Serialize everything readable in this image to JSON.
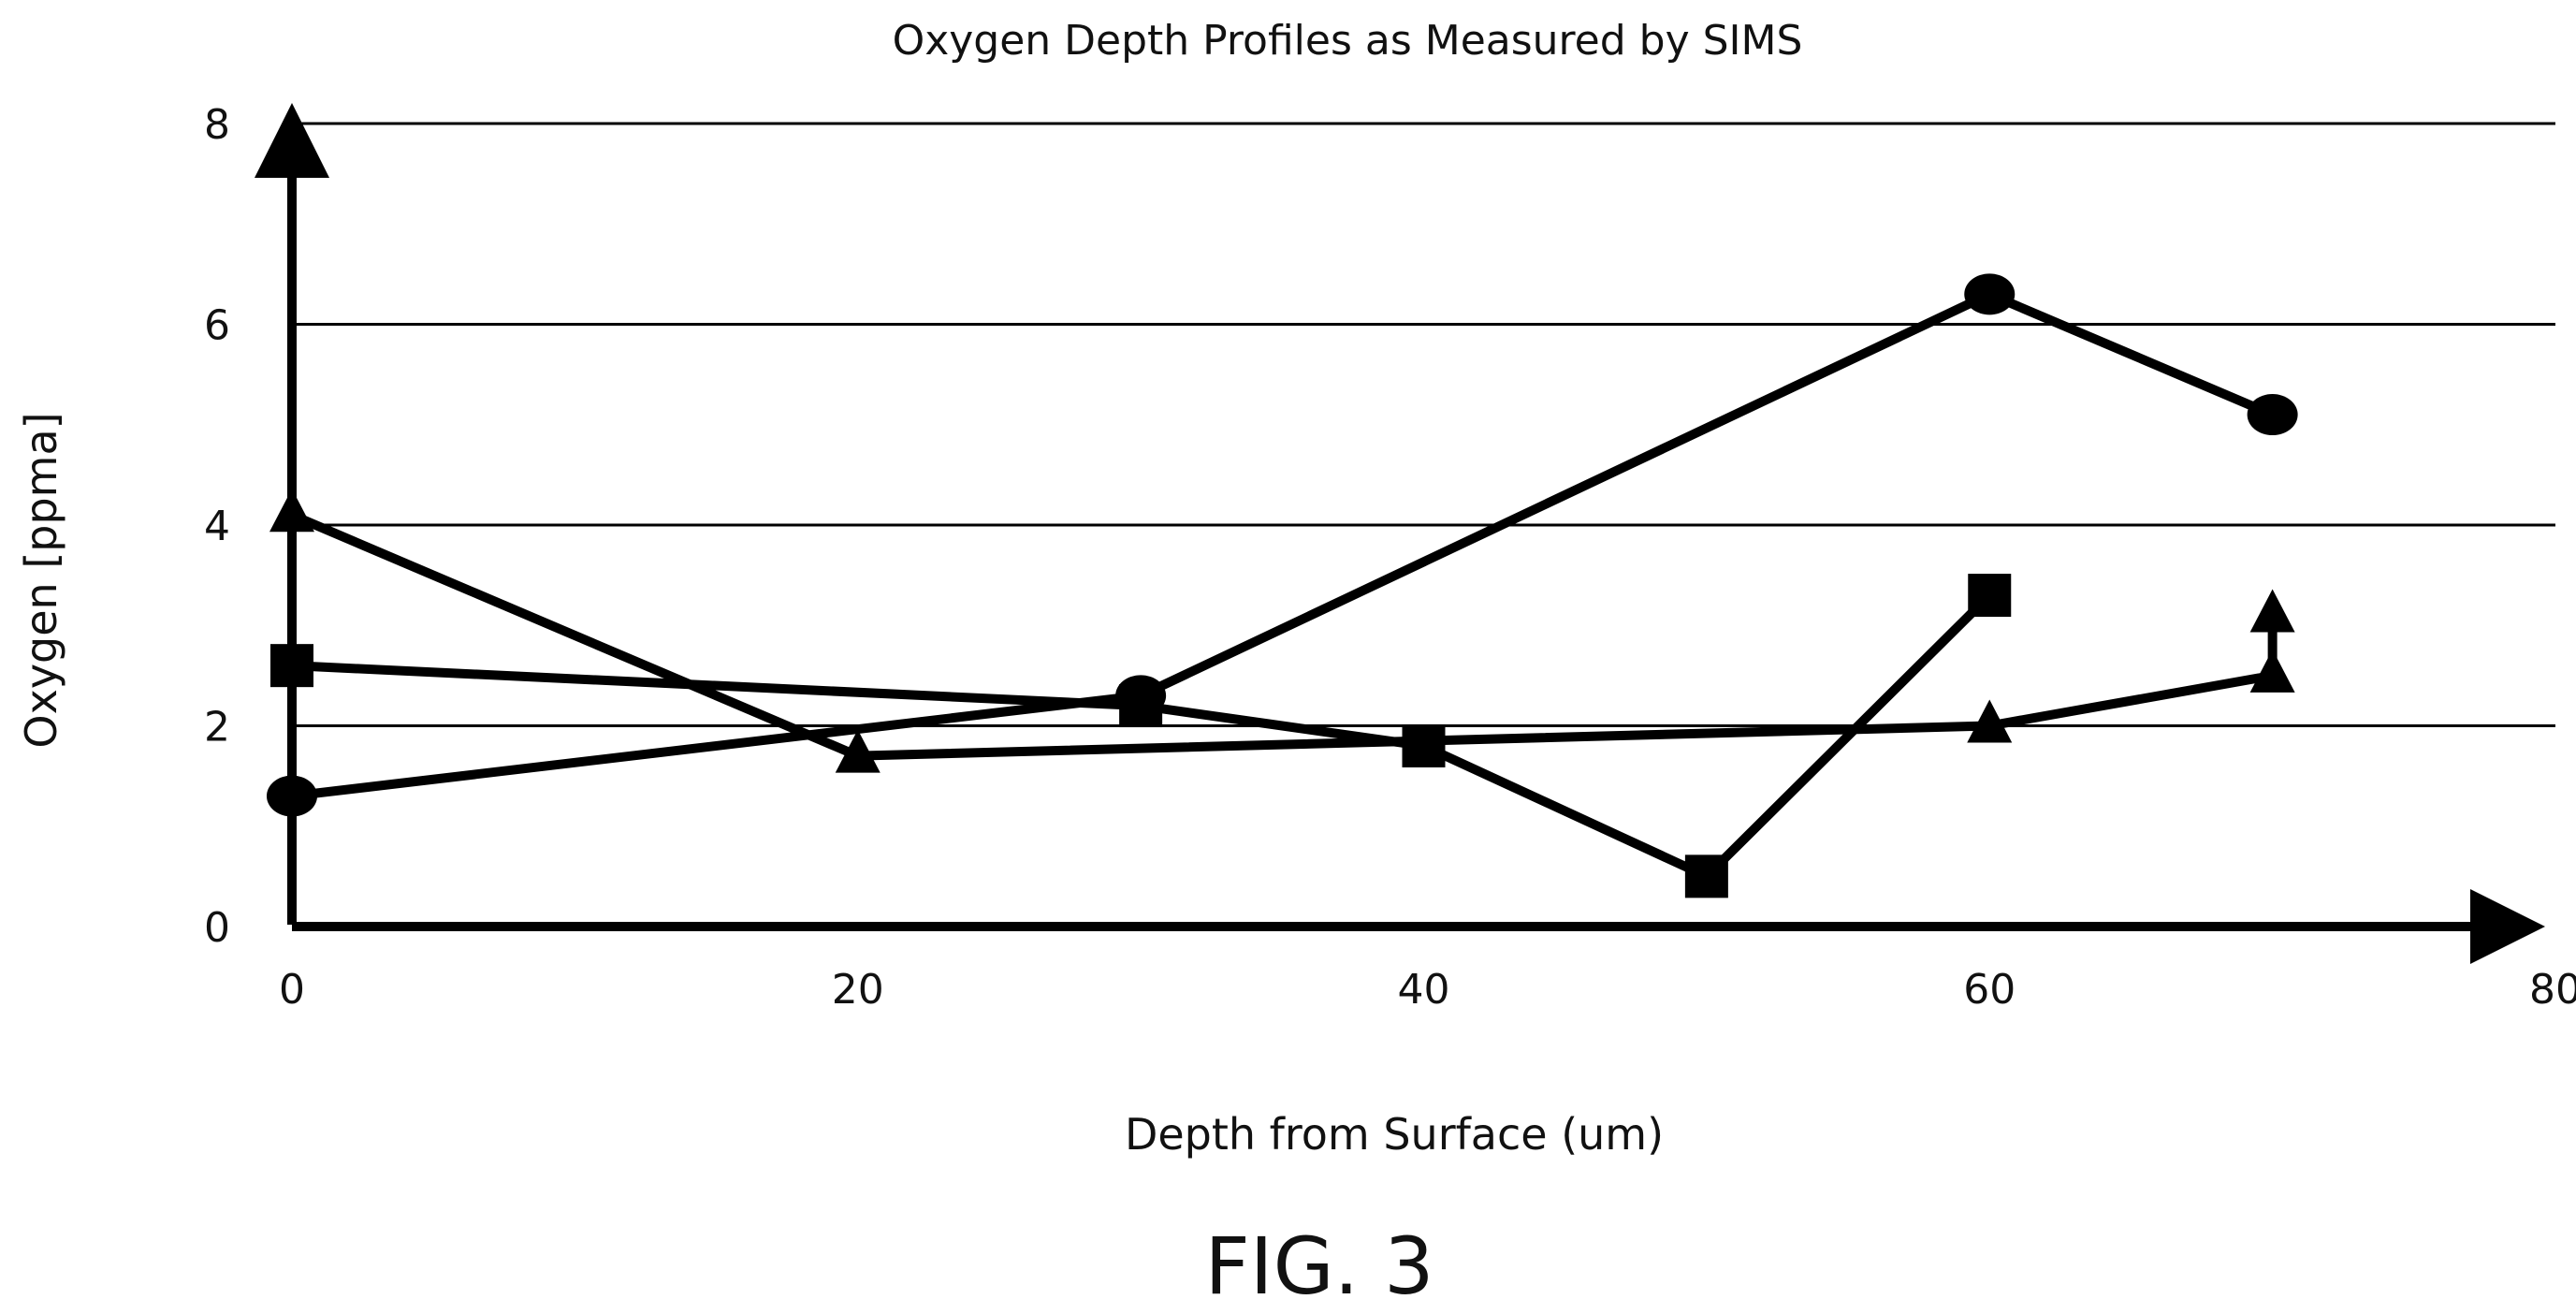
{
  "chart_data": {
    "type": "line",
    "title": "Oxygen Depth Profiles as Measured by SIMS",
    "xlabel": "Depth from Surface (um)",
    "ylabel": "Oxygen [ppma]",
    "xlim": [
      0,
      80
    ],
    "ylim": [
      0,
      8
    ],
    "xticks": [
      "0",
      "20",
      "40",
      "60",
      "80"
    ],
    "yticks": [
      "0",
      "2",
      "4",
      "6",
      "8"
    ],
    "grid": true,
    "series": [
      {
        "marker": "circle",
        "x": [
          0,
          30,
          60,
          70
        ],
        "y": [
          1.3,
          2.3,
          6.3,
          5.1
        ]
      },
      {
        "marker": "square",
        "x": [
          0,
          30,
          40,
          50,
          60
        ],
        "y": [
          2.6,
          2.2,
          1.8,
          0.5,
          3.3
        ]
      },
      {
        "marker": "triangle",
        "x": [
          0,
          20,
          60,
          70,
          70
        ],
        "y": [
          4.1,
          1.7,
          2.0,
          2.5,
          3.1
        ]
      }
    ],
    "caption": "FIG. 3"
  }
}
